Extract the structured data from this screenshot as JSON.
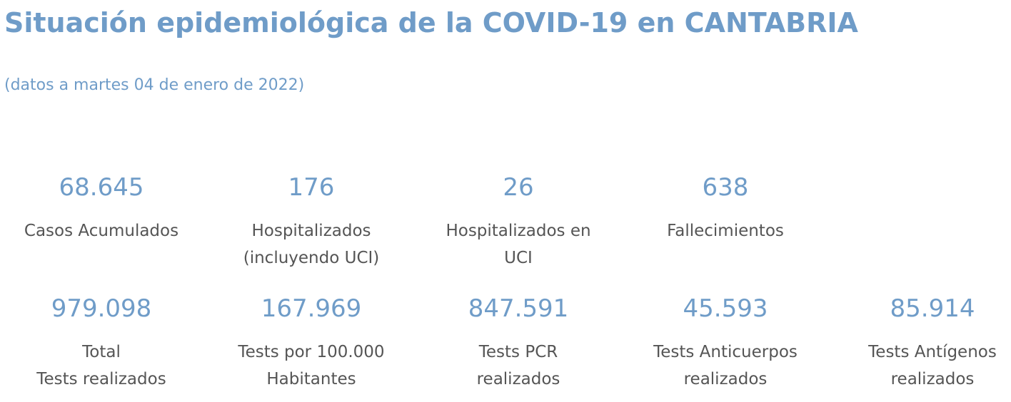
{
  "header": {
    "title": "Situación epidemiológica de la COVID-19 en CANTABRIA",
    "subtitle": "(datos a martes 04 de enero de 2022)"
  },
  "colors": {
    "accent": "#6f9cc8",
    "label_text": "#555555",
    "background": "#ffffff"
  },
  "stats_row1": [
    {
      "value": "68.645",
      "label": "Casos Acumulados"
    },
    {
      "value": "176",
      "label": "Hospitalizados\n(incluyendo UCI)"
    },
    {
      "value": "26",
      "label": "Hospitalizados en\nUCI"
    },
    {
      "value": "638",
      "label": "Fallecimientos"
    }
  ],
  "stats_row2": [
    {
      "value": "979.098",
      "label": "Total\nTests realizados"
    },
    {
      "value": "167.969",
      "label": "Tests por 100.000\nHabitantes"
    },
    {
      "value": "847.591",
      "label": "Tests PCR\nrealizados"
    },
    {
      "value": "45.593",
      "label": "Tests Anticuerpos\nrealizados"
    },
    {
      "value": "85.914",
      "label": "Tests Antígenos\nrealizados"
    }
  ]
}
